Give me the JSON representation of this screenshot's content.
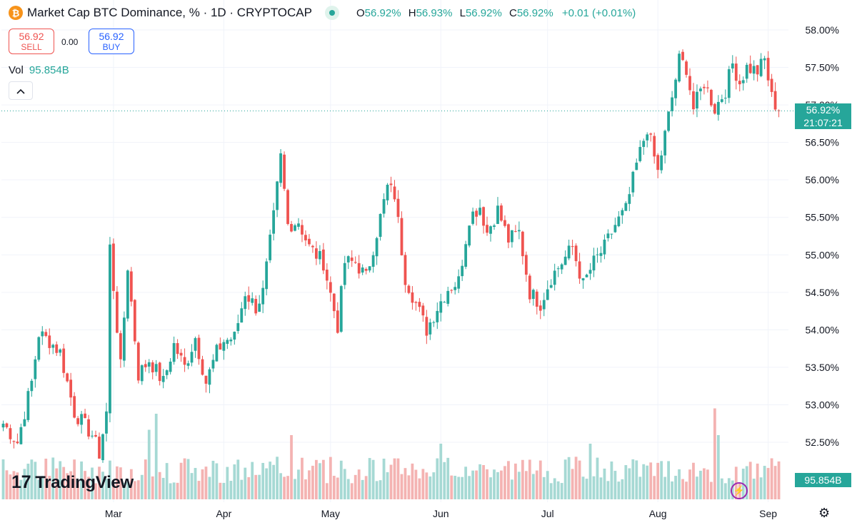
{
  "header": {
    "title": "Market Cap BTC Dominance, % · 1D · CRYPTOCAP",
    "coin_symbol": "₿",
    "ohlc": {
      "o_label": "O",
      "o_value": "56.92%",
      "h_label": "H",
      "h_value": "56.93%",
      "l_label": "L",
      "l_value": "56.92%",
      "c_label": "C",
      "c_value": "56.92%",
      "change": "+0.01 (+0.01%)"
    }
  },
  "trade": {
    "sell_price": "56.92",
    "sell_label": "SELL",
    "spread": "0.00",
    "buy_price": "56.92",
    "buy_label": "BUY"
  },
  "volume_legend": {
    "label": "Vol",
    "value": "95.854B"
  },
  "collapse_icon": "chevron-up-icon",
  "brand": {
    "name": "TradingView",
    "mark": "17"
  },
  "price_label": {
    "value": "56.92%",
    "countdown": "21:07:21"
  },
  "volume_label": "95.854B",
  "colors": {
    "up": "#26a69a",
    "down": "#ef5350",
    "up_volume": "#a6d9d4",
    "down_volume": "#f4b3b2",
    "grid": "#f0f3fa"
  },
  "chart_data": {
    "type": "candlestick",
    "y_ticks": [
      "58.00%",
      "57.50%",
      "57.00%",
      "56.50%",
      "56.00%",
      "55.50%",
      "55.00%",
      "54.50%",
      "54.00%",
      "53.50%",
      "53.00%",
      "52.50%"
    ],
    "y_tick_values": [
      58.0,
      57.5,
      57.0,
      56.5,
      56.0,
      55.5,
      55.0,
      54.5,
      54.0,
      53.5,
      53.0,
      52.5
    ],
    "ylim": [
      52.1,
      58.2
    ],
    "x_ticks": [
      {
        "label": "Mar",
        "index": 31
      },
      {
        "label": "Apr",
        "index": 62
      },
      {
        "label": "May",
        "index": 92
      },
      {
        "label": "Jun",
        "index": 123
      },
      {
        "label": "Jul",
        "index": 153
      },
      {
        "label": "Aug",
        "index": 184
      },
      {
        "label": "Sep",
        "index": 215
      }
    ],
    "num_bars": 219,
    "current_price": 56.92,
    "anchors": [
      [
        0,
        52.75
      ],
      [
        4,
        52.5
      ],
      [
        8,
        53.3
      ],
      [
        10,
        53.95
      ],
      [
        13,
        53.85
      ],
      [
        16,
        53.7
      ],
      [
        20,
        52.9
      ],
      [
        25,
        52.6
      ],
      [
        27,
        52.35
      ],
      [
        29,
        52.9
      ],
      [
        30,
        55.1
      ],
      [
        33,
        53.5
      ],
      [
        35,
        54.85
      ],
      [
        38,
        53.4
      ],
      [
        41,
        53.6
      ],
      [
        45,
        53.3
      ],
      [
        48,
        53.8
      ],
      [
        51,
        53.5
      ],
      [
        54,
        53.9
      ],
      [
        57,
        53.3
      ],
      [
        60,
        53.7
      ],
      [
        62,
        53.85
      ],
      [
        65,
        53.9
      ],
      [
        68,
        54.5
      ],
      [
        71,
        54.3
      ],
      [
        73,
        54.5
      ],
      [
        76,
        55.5
      ],
      [
        78,
        56.3
      ],
      [
        80,
        55.4
      ],
      [
        83,
        55.45
      ],
      [
        86,
        55.1
      ],
      [
        90,
        54.9
      ],
      [
        94,
        54.05
      ],
      [
        96,
        54.9
      ],
      [
        99,
        54.9
      ],
      [
        102,
        54.7
      ],
      [
        105,
        55.3
      ],
      [
        108,
        55.9
      ],
      [
        110,
        55.8
      ],
      [
        113,
        54.7
      ],
      [
        116,
        54.35
      ],
      [
        119,
        54.0
      ],
      [
        122,
        54.3
      ],
      [
        125,
        54.55
      ],
      [
        128,
        54.65
      ],
      [
        131,
        55.5
      ],
      [
        134,
        55.65
      ],
      [
        136,
        55.3
      ],
      [
        139,
        55.6
      ],
      [
        142,
        55.2
      ],
      [
        145,
        55.3
      ],
      [
        148,
        54.5
      ],
      [
        151,
        54.35
      ],
      [
        154,
        54.7
      ],
      [
        157,
        54.9
      ],
      [
        160,
        55.1
      ],
      [
        163,
        54.6
      ],
      [
        166,
        54.9
      ],
      [
        169,
        55.1
      ],
      [
        172,
        55.4
      ],
      [
        175,
        55.6
      ],
      [
        178,
        56.2
      ],
      [
        181,
        56.7
      ],
      [
        184,
        56.1
      ],
      [
        186,
        56.6
      ],
      [
        188,
        57.1
      ],
      [
        190,
        57.6
      ],
      [
        192,
        57.5
      ],
      [
        194,
        56.95
      ],
      [
        197,
        57.3
      ],
      [
        200,
        56.95
      ],
      [
        203,
        57.2
      ],
      [
        205,
        57.55
      ],
      [
        207,
        57.3
      ],
      [
        209,
        57.5
      ],
      [
        212,
        57.45
      ],
      [
        214,
        57.6
      ],
      [
        216,
        57.1
      ],
      [
        218,
        56.92
      ]
    ],
    "volume": {
      "label": "Vol",
      "last": "95.854B",
      "spikes": [
        [
          43,
          0.8
        ],
        [
          41,
          0.65
        ],
        [
          200,
          0.85
        ],
        [
          201,
          0.6
        ],
        [
          81,
          0.6
        ],
        [
          123,
          0.52
        ],
        [
          165,
          0.52
        ]
      ]
    }
  }
}
